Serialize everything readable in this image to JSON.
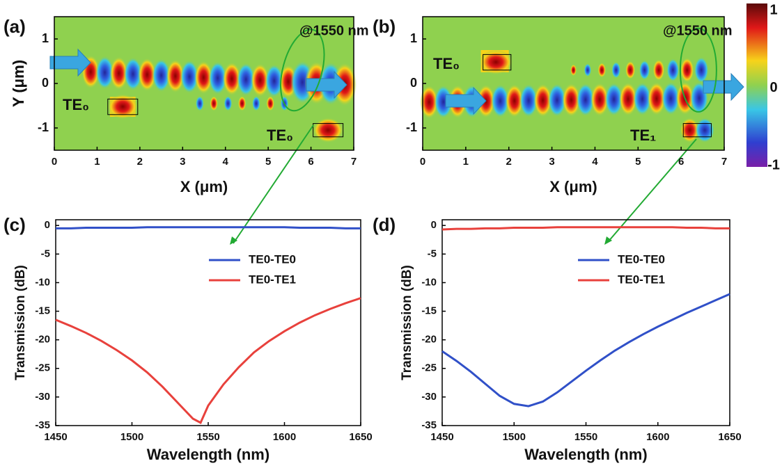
{
  "chart_data": [
    {
      "type": "heatmap",
      "label": "(a)",
      "xlabel": "X (μm)",
      "ylabel": "Y (μm)",
      "xlim": [
        0,
        7
      ],
      "xticks": [
        0,
        1,
        2,
        3,
        4,
        5,
        6,
        7
      ],
      "ylim": [
        -1.5,
        1.5
      ],
      "yticks": [
        -1,
        0,
        1
      ],
      "annotations": [
        "@1550 nm",
        "TE₀",
        "TE₀"
      ]
    },
    {
      "type": "heatmap",
      "label": "(b)",
      "xlabel": "X (μm)",
      "ylabel": "Y (μm)",
      "xlim": [
        0,
        7
      ],
      "xticks": [
        0,
        1,
        2,
        3,
        4,
        5,
        6,
        7
      ],
      "ylim": [
        -1.5,
        1.5
      ],
      "yticks": [
        -1,
        0,
        1
      ],
      "annotations": [
        "@1550 nm",
        "TE₀",
        "TE₁"
      ],
      "colorbar": {
        "lim": [
          -1,
          1
        ],
        "ticks": [
          1,
          0,
          -1
        ]
      }
    },
    {
      "type": "line",
      "label": "(c)",
      "xlabel": "Wavelength (nm)",
      "ylabel": "Transmission (dB)",
      "xlim": [
        1450,
        1650
      ],
      "xticks": [
        1450,
        1500,
        1550,
        1600,
        1650
      ],
      "ylim": [
        -35,
        1
      ],
      "yticks": [
        0,
        -5,
        -10,
        -15,
        -20,
        -25,
        -30,
        -35
      ],
      "legend": "right",
      "x": [
        1450,
        1460,
        1470,
        1480,
        1490,
        1500,
        1510,
        1520,
        1530,
        1540,
        1545,
        1550,
        1560,
        1570,
        1580,
        1590,
        1600,
        1610,
        1620,
        1630,
        1640,
        1650
      ],
      "series": [
        {
          "name": "TE0-TE0",
          "color": "#3050c8",
          "values": [
            -0.5,
            -0.5,
            -0.4,
            -0.4,
            -0.4,
            -0.4,
            -0.3,
            -0.3,
            -0.3,
            -0.3,
            -0.3,
            -0.3,
            -0.3,
            -0.3,
            -0.3,
            -0.3,
            -0.3,
            -0.4,
            -0.4,
            -0.4,
            -0.5,
            -0.5
          ]
        },
        {
          "name": "TE0-TE1",
          "color": "#e8413c",
          "values": [
            -16.5,
            -17.6,
            -18.8,
            -20.2,
            -21.8,
            -23.6,
            -25.7,
            -28.2,
            -31,
            -33.8,
            -34.5,
            -31.5,
            -27.8,
            -24.8,
            -22.2,
            -20.2,
            -18.5,
            -17,
            -15.7,
            -14.6,
            -13.6,
            -12.7
          ]
        }
      ]
    },
    {
      "type": "line",
      "label": "(d)",
      "xlabel": "Wavelength (nm)",
      "ylabel": "Transmission (dB)",
      "xlim": [
        1450,
        1650
      ],
      "xticks": [
        1450,
        1500,
        1550,
        1600,
        1650
      ],
      "ylim": [
        -35,
        1
      ],
      "yticks": [
        0,
        -5,
        -10,
        -15,
        -20,
        -25,
        -30,
        -35
      ],
      "legend": "right",
      "x": [
        1450,
        1460,
        1470,
        1480,
        1490,
        1500,
        1510,
        1520,
        1530,
        1540,
        1550,
        1560,
        1570,
        1580,
        1590,
        1600,
        1610,
        1620,
        1630,
        1640,
        1650
      ],
      "series": [
        {
          "name": "TE0-TE0",
          "color": "#3050c8",
          "values": [
            -22,
            -23.7,
            -25.6,
            -27.7,
            -29.8,
            -31.2,
            -31.6,
            -30.8,
            -29.2,
            -27.3,
            -25.4,
            -23.6,
            -21.9,
            -20.4,
            -19,
            -17.7,
            -16.5,
            -15.3,
            -14.2,
            -13.1,
            -12
          ]
        },
        {
          "name": "TE0-TE1",
          "color": "#e8413c",
          "values": [
            -0.7,
            -0.6,
            -0.6,
            -0.5,
            -0.5,
            -0.4,
            -0.4,
            -0.4,
            -0.3,
            -0.3,
            -0.3,
            -0.3,
            -0.3,
            -0.3,
            -0.3,
            -0.3,
            -0.3,
            -0.4,
            -0.4,
            -0.5,
            -0.5
          ]
        }
      ]
    }
  ]
}
